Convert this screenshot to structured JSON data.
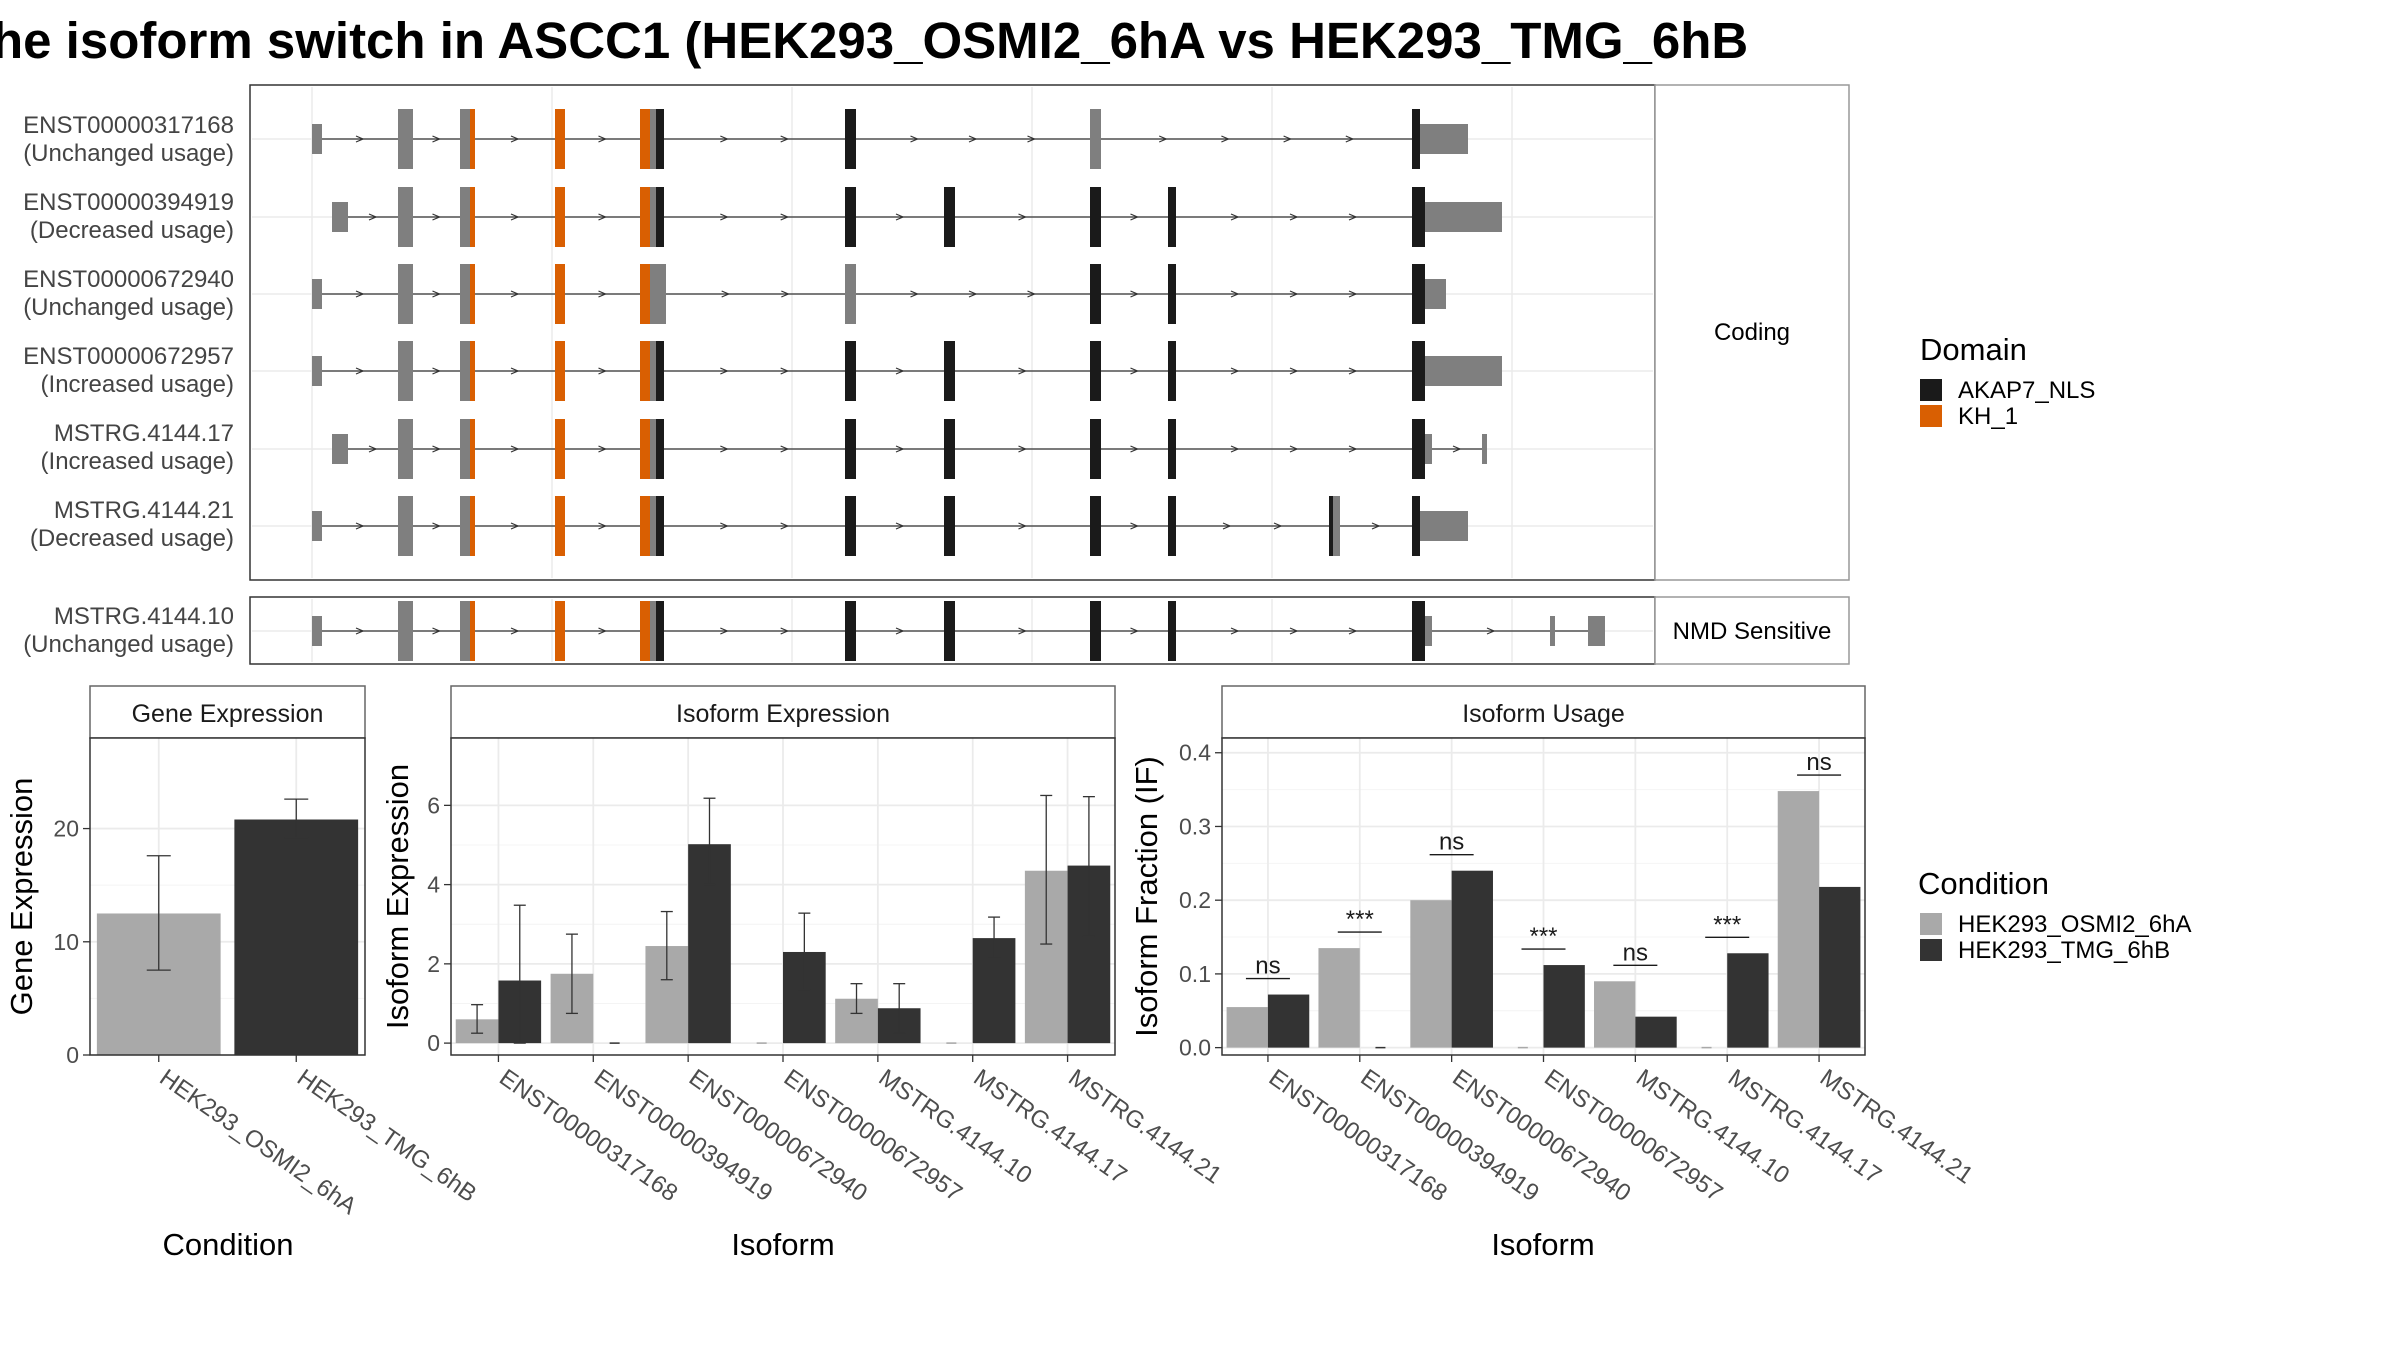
{
  "title": "he isoform switch in ASCC1 (HEK293_OSMI2_6hA vs HEK293_TMG_6hB",
  "colors": {
    "domain_AKAP7_NLS": "#1a1a1a",
    "domain_KH_1": "#d95f02",
    "exon_noncoding": "#7f7f7f",
    "cond_A": "#a9a9a9",
    "cond_B": "#333333",
    "panel_border": "#555555",
    "grid": "#ebebeb",
    "strip_fill": "#ffffff"
  },
  "structure": {
    "facets": [
      "Coding",
      "NMD Sensitive"
    ],
    "coding_isoforms": [
      {
        "id": "ENST00000317168",
        "usage": "(Unchanged usage)"
      },
      {
        "id": "ENST00000394919",
        "usage": "(Decreased usage)"
      },
      {
        "id": "ENST00000672940",
        "usage": "(Unchanged usage)"
      },
      {
        "id": "ENST00000672957",
        "usage": "(Increased usage)"
      },
      {
        "id": "MSTRG.4144.17",
        "usage": "(Increased usage)"
      },
      {
        "id": "MSTRG.4144.21",
        "usage": "(Decreased usage)"
      }
    ],
    "nmd_isoforms": [
      {
        "id": "MSTRG.4144.10",
        "usage": "(Unchanged usage)"
      }
    ]
  },
  "legends": {
    "domain": {
      "title": "Domain",
      "items": [
        "AKAP7_NLS",
        "KH_1"
      ]
    },
    "condition": {
      "title": "Condition",
      "items": [
        "HEK293_OSMI2_6hA",
        "HEK293_TMG_6hB"
      ]
    }
  },
  "chart_data": [
    {
      "type": "bar",
      "title": "Gene Expression",
      "xlabel": "Condition",
      "ylabel": "Gene Expression",
      "categories": [
        "HEK293_OSMI2_6hA",
        "HEK293_TMG_6hB"
      ],
      "values": [
        12.5,
        20.8
      ],
      "error_low": [
        7.5,
        19.2
      ],
      "error_high": [
        17.6,
        22.6
      ],
      "ylim": [
        0,
        28
      ],
      "yticks": [
        0,
        10,
        20
      ]
    },
    {
      "type": "bar",
      "title": "Isoform Expression",
      "xlabel": "Isoform",
      "ylabel": "Isoform Expression",
      "categories": [
        "ENST00000317168",
        "ENST00000394919",
        "ENST00000672940",
        "ENST00000672957",
        "MSTRG.4144.10",
        "MSTRG.4144.17",
        "MSTRG.4144.21"
      ],
      "series": [
        {
          "name": "HEK293_OSMI2_6hA",
          "values": [
            0.6,
            1.75,
            2.45,
            0,
            1.12,
            0,
            4.35
          ],
          "error_low": [
            0.25,
            0.75,
            1.6,
            0,
            0.75,
            0,
            2.5
          ],
          "error_high": [
            0.97,
            2.75,
            3.32,
            0,
            1.5,
            0,
            6.25
          ]
        },
        {
          "name": "HEK293_TMG_6hB",
          "values": [
            1.58,
            0,
            5.02,
            2.3,
            0.88,
            2.65,
            4.48
          ],
          "error_low": [
            0,
            0,
            4.0,
            1.35,
            0.25,
            2.15,
            2.7
          ],
          "error_high": [
            3.48,
            0,
            6.18,
            3.28,
            1.5,
            3.18,
            6.22
          ]
        }
      ],
      "ylim": [
        -0.3,
        7.7
      ],
      "yticks": [
        0,
        2,
        4,
        6
      ]
    },
    {
      "type": "bar",
      "title": "Isoform Usage",
      "xlabel": "Isoform",
      "ylabel": "Isoform Fraction (IF)",
      "categories": [
        "ENST00000317168",
        "ENST00000394919",
        "ENST00000672940",
        "ENST00000672957",
        "MSTRG.4144.10",
        "MSTRG.4144.17",
        "MSTRG.4144.21"
      ],
      "series": [
        {
          "name": "HEK293_OSMI2_6hA",
          "values": [
            0.055,
            0.135,
            0.2,
            0,
            0.09,
            0,
            0.348
          ]
        },
        {
          "name": "HEK293_TMG_6hB",
          "values": [
            0.072,
            0,
            0.24,
            0.112,
            0.042,
            0.128,
            0.218
          ]
        }
      ],
      "significance": [
        "ns",
        "***",
        "ns",
        "***",
        "ns",
        "***",
        "ns"
      ],
      "ylim": [
        -0.01,
        0.42
      ],
      "yticks": [
        0.0,
        0.1,
        0.2,
        0.3,
        0.4
      ],
      "ytick_labels": [
        "0.0",
        "0.1",
        "0.2",
        "0.3",
        "0.4"
      ]
    }
  ]
}
